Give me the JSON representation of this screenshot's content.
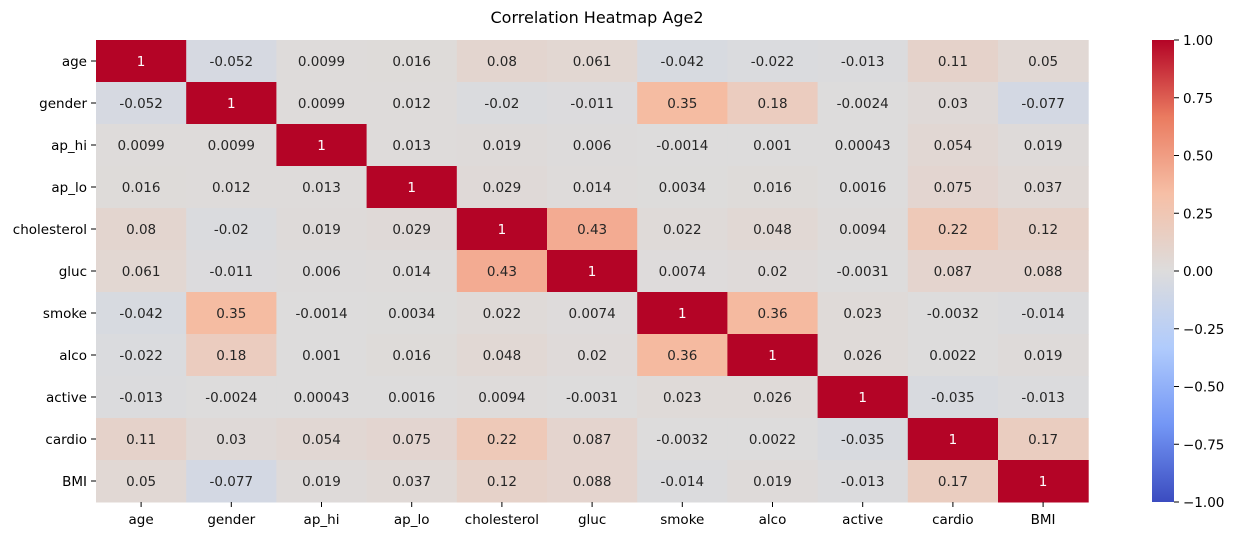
{
  "chart_data": {
    "type": "heatmap",
    "title": "Correlation Heatmap Age2",
    "xlabel": "",
    "ylabel": "",
    "x_categories": [
      "age",
      "gender",
      "ap_hi",
      "ap_lo",
      "cholesterol",
      "gluc",
      "smoke",
      "alco",
      "active",
      "cardio",
      "BMI"
    ],
    "y_categories": [
      "age",
      "gender",
      "ap_hi",
      "ap_lo",
      "cholesterol",
      "gluc",
      "smoke",
      "alco",
      "active",
      "cardio",
      "BMI"
    ],
    "values": [
      [
        1,
        -0.052,
        0.0099,
        0.016,
        0.08,
        0.061,
        -0.042,
        -0.022,
        -0.013,
        0.11,
        0.05
      ],
      [
        -0.052,
        1,
        0.0099,
        0.012,
        -0.02,
        -0.011,
        0.35,
        0.18,
        -0.0024,
        0.03,
        -0.077
      ],
      [
        0.0099,
        0.0099,
        1,
        0.013,
        0.019,
        0.006,
        -0.0014,
        0.001,
        0.00043,
        0.054,
        0.019
      ],
      [
        0.016,
        0.012,
        0.013,
        1,
        0.029,
        0.014,
        0.0034,
        0.016,
        0.0016,
        0.075,
        0.037
      ],
      [
        0.08,
        -0.02,
        0.019,
        0.029,
        1,
        0.43,
        0.022,
        0.048,
        0.0094,
        0.22,
        0.12
      ],
      [
        0.061,
        -0.011,
        0.006,
        0.014,
        0.43,
        1,
        0.0074,
        0.02,
        -0.0031,
        0.087,
        0.088
      ],
      [
        -0.042,
        0.35,
        -0.0014,
        0.0034,
        0.022,
        0.0074,
        1,
        0.36,
        0.023,
        -0.0032,
        -0.014
      ],
      [
        -0.022,
        0.18,
        0.001,
        0.016,
        0.048,
        0.02,
        0.36,
        1,
        0.026,
        0.0022,
        0.019
      ],
      [
        -0.013,
        -0.0024,
        0.00043,
        0.0016,
        0.0094,
        -0.0031,
        0.023,
        0.026,
        1,
        -0.035,
        -0.013
      ],
      [
        0.11,
        0.03,
        0.054,
        0.075,
        0.22,
        0.087,
        -0.0032,
        0.0022,
        -0.035,
        1,
        0.17
      ],
      [
        0.05,
        -0.077,
        0.019,
        0.037,
        0.12,
        0.088,
        -0.014,
        0.019,
        -0.013,
        0.17,
        1
      ]
    ],
    "value_labels": [
      [
        "1",
        "-0.052",
        "0.0099",
        "0.016",
        "0.08",
        "0.061",
        "-0.042",
        "-0.022",
        "-0.013",
        "0.11",
        "0.05"
      ],
      [
        "-0.052",
        "1",
        "0.0099",
        "0.012",
        "-0.02",
        "-0.011",
        "0.35",
        "0.18",
        "-0.0024",
        "0.03",
        "-0.077"
      ],
      [
        "0.0099",
        "0.0099",
        "1",
        "0.013",
        "0.019",
        "0.006",
        "-0.0014",
        "0.001",
        "0.00043",
        "0.054",
        "0.019"
      ],
      [
        "0.016",
        "0.012",
        "0.013",
        "1",
        "0.029",
        "0.014",
        "0.0034",
        "0.016",
        "0.0016",
        "0.075",
        "0.037"
      ],
      [
        "0.08",
        "-0.02",
        "0.019",
        "0.029",
        "1",
        "0.43",
        "0.022",
        "0.048",
        "0.0094",
        "0.22",
        "0.12"
      ],
      [
        "0.061",
        "-0.011",
        "0.006",
        "0.014",
        "0.43",
        "1",
        "0.0074",
        "0.02",
        "-0.0031",
        "0.087",
        "0.088"
      ],
      [
        "-0.042",
        "0.35",
        "-0.0014",
        "0.0034",
        "0.022",
        "0.0074",
        "1",
        "0.36",
        "0.023",
        "-0.0032",
        "-0.014"
      ],
      [
        "-0.022",
        "0.18",
        "0.001",
        "0.016",
        "0.048",
        "0.02",
        "0.36",
        "1",
        "0.026",
        "0.0022",
        "0.019"
      ],
      [
        "-0.013",
        "-0.0024",
        "0.00043",
        "0.0016",
        "0.0094",
        "-0.0031",
        "0.023",
        "0.026",
        "1",
        "-0.035",
        "-0.013"
      ],
      [
        "0.11",
        "0.03",
        "0.054",
        "0.075",
        "0.22",
        "0.087",
        "-0.0032",
        "0.0022",
        "-0.035",
        "1",
        "0.17"
      ],
      [
        "0.05",
        "-0.077",
        "0.019",
        "0.037",
        "0.12",
        "0.088",
        "-0.014",
        "0.019",
        "-0.013",
        "0.17",
        "1"
      ]
    ],
    "colormap": "coolwarm",
    "colormap_stops": [
      "#3b4cc0",
      "#7396f5",
      "#b0cbfc",
      "#dddcdc",
      "#f6bfa6",
      "#ea7b60",
      "#b40426"
    ],
    "vmin": -1,
    "vmax": 1,
    "colorbar": {
      "ticks": [
        1,
        0.75,
        0.5,
        0.25,
        0,
        -0.25,
        -0.5,
        -0.75,
        -1
      ],
      "tick_labels": [
        "1.00",
        "0.75",
        "0.50",
        "0.25",
        "0.00",
        "−0.25",
        "−0.50",
        "−0.75",
        "−1.00"
      ]
    },
    "grid": false,
    "colorbar_position": "right"
  }
}
